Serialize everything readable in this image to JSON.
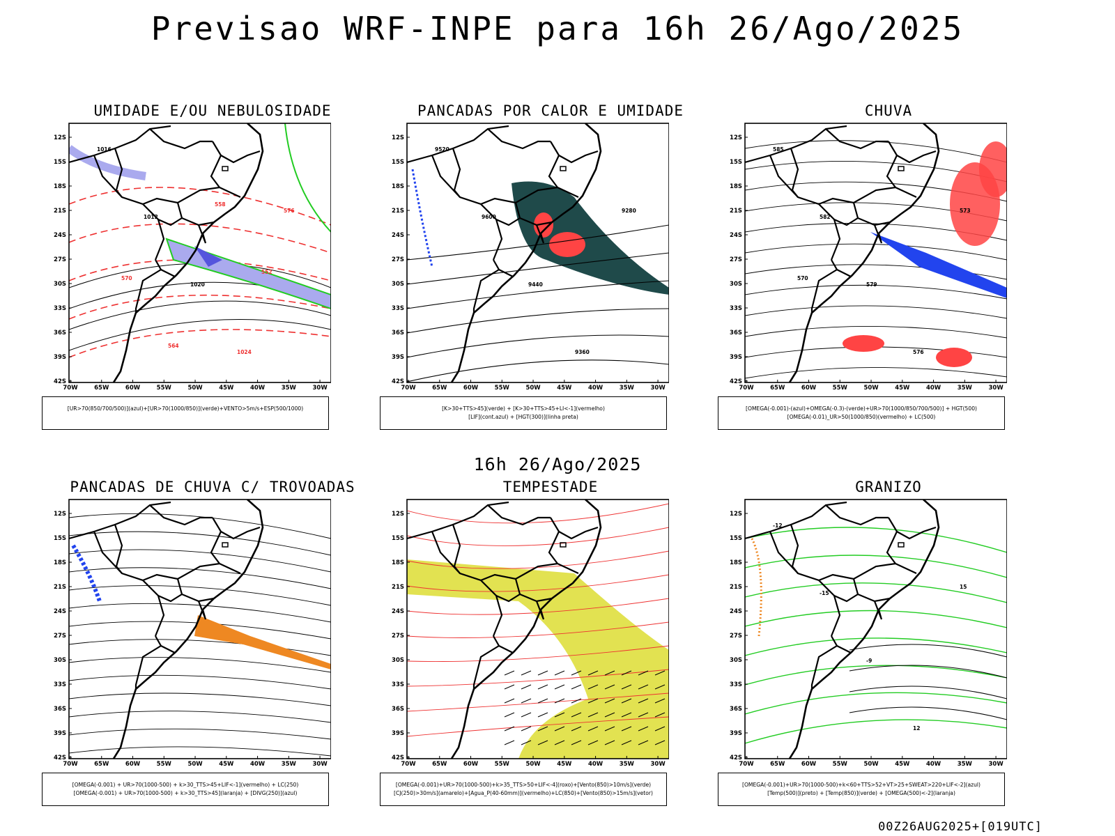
{
  "header": {
    "title": "Previsao WRF-INPE  para 16h 26/Ago/2025",
    "mid_title": "16h 26/Ago/2025",
    "run_stamp": "00Z26AUG2025+[019UTC]"
  },
  "axes": {
    "lat_labels": [
      "12S",
      "15S",
      "18S",
      "21S",
      "24S",
      "27S",
      "30S",
      "33S",
      "36S",
      "39S",
      "42S"
    ],
    "lon_labels": [
      "70W",
      "65W",
      "60W",
      "55W",
      "50W",
      "45W",
      "40W",
      "35W",
      "30W"
    ]
  },
  "panels": [
    {
      "id": "umidade",
      "title": "UMIDADE E/OU NEBULOSIDADE",
      "legend_lines": [
        "[UR>70(850/700/500)](azul)+[UR>70(1000/850)](verde)+VENTO>5m/s+ESP(500/1000)"
      ],
      "contour_labels": [
        "1016",
        "1012",
        "1020",
        "1024",
        "576",
        "570",
        "564",
        "558",
        "552"
      ]
    },
    {
      "id": "pancadas-calor",
      "title": "PANCADAS POR CALOR E UMIDADE",
      "legend_lines": [
        "[K>30+TTS>45](verde) + [K>30+TTS>45+LI<-1](vermelho)",
        "[LIF](cont.azul) + [HGT(300)](linha preta)"
      ],
      "contour_labels": [
        "9520",
        "9600",
        "9440",
        "9360",
        "9280"
      ]
    },
    {
      "id": "chuva",
      "title": "CHUVA",
      "legend_lines": [
        "[OMEGA(-0.001)-(azul)+OMEGA(-0.3)-(verde)+UR>70(1000/850/700/500)] + HGT(500)",
        "[OMEGA(-0.01)_UR>50(1000/850)(vermelho) + LC(500)"
      ],
      "contour_labels": [
        "585",
        "582",
        "579",
        "576",
        "573",
        "570"
      ]
    },
    {
      "id": "trovoadas",
      "title": "PANCADAS DE CHUVA C/ TROVOADAS",
      "legend_lines": [
        "[OMEGA(-0.001) + UR>70(1000-500) + k>30_TTS>45+LIF<-1](vermelho) + LC(250)",
        "[OMEGA(-0.001) + UR>70(1000-500) + k>30_TTS>45](laranja) + [DIVG(250)](azul)"
      ],
      "contour_labels": []
    },
    {
      "id": "tempestade",
      "title": "TEMPESTADE",
      "legend_lines": [
        "[OMEGA(-0.001)+UR>70(1000-500)+k>35_TTS>50+LIF<-4](roxo)+[Vento(850)>10m/s](verde)",
        "[CJ(250)>30m/s](amarelo)+[Agua_P(40-60mm)](vermelho)+LC(850)+[Vento(850)>15m/s](vetor)"
      ],
      "contour_labels": []
    },
    {
      "id": "granizo",
      "title": "GRANIZO",
      "legend_lines": [
        "[OMEGA(-0.001)+UR>70(1000-500)+k<60+TTS>52+VT>25+SWEAT>220+LIF<-2](azul)",
        "[Temp(500)](preto) + [Temp(850)](verde) + [OMEGA(500)<-2](laranja)"
      ],
      "contour_labels": [
        "-12",
        "-15",
        "-9",
        "12",
        "15"
      ]
    }
  ]
}
